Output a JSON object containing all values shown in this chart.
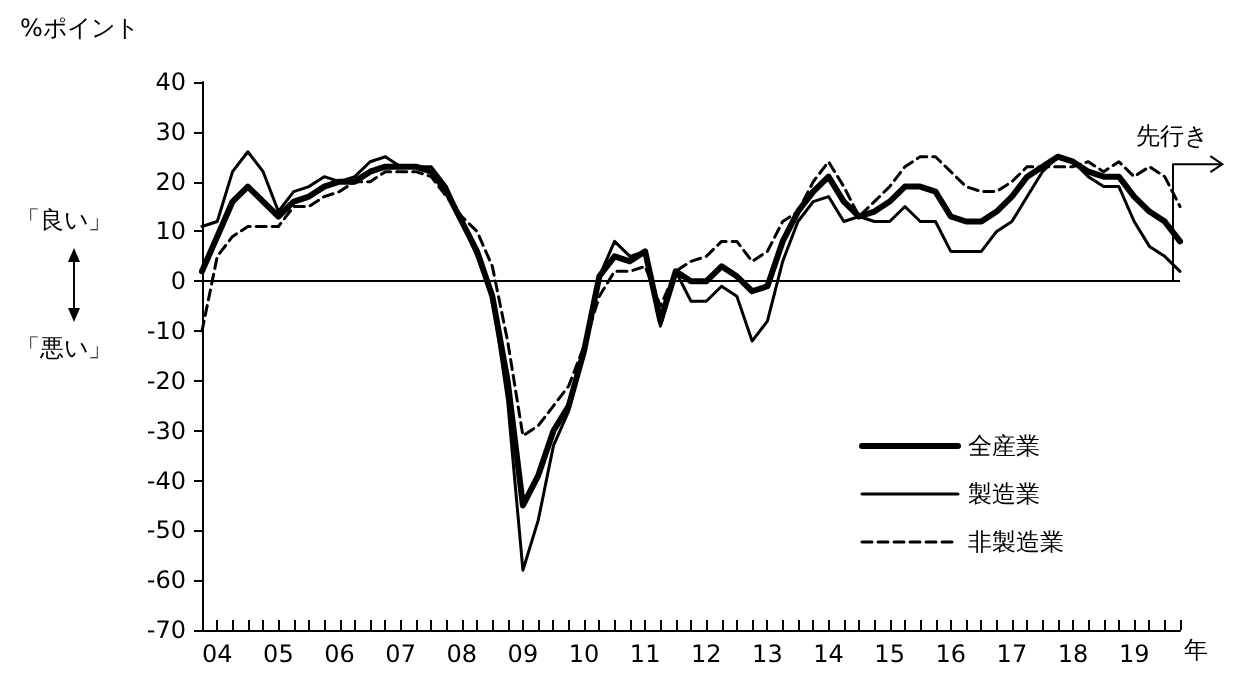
{
  "chart_data": {
    "type": "line",
    "ylabel": "%ポイント",
    "xlabel": "年",
    "annotations": [
      "「良い」",
      "「悪い」"
    ],
    "x": [
      2003.75,
      2004,
      2004.25,
      2004.5,
      2004.75,
      2005,
      2005.25,
      2005.5,
      2005.75,
      2006,
      2006.25,
      2006.5,
      2006.75,
      2007,
      2007.25,
      2007.5,
      2007.75,
      2008,
      2008.25,
      2008.5,
      2008.75,
      2009,
      2009.25,
      2009.5,
      2009.75,
      2010,
      2010.25,
      2010.5,
      2010.75,
      2011,
      2011.25,
      2011.5,
      2011.75,
      2012,
      2012.25,
      2012.5,
      2012.75,
      2013,
      2013.25,
      2013.5,
      2013.75,
      2014,
      2014.25,
      2014.5,
      2014.75,
      2015,
      2015.25,
      2015.5,
      2015.75,
      2016,
      2016.25,
      2016.5,
      2016.75,
      2017,
      2017.25,
      2017.5,
      2017.75,
      2018,
      2018.25,
      2018.5,
      2018.75,
      2019,
      2019.25,
      2019.5,
      2019.75
    ],
    "series": [
      {
        "name": "全産業",
        "color": "#000000",
        "line_style": "solid",
        "values": [
          2,
          9,
          16,
          19,
          16,
          13,
          16,
          17,
          19,
          20,
          20,
          22,
          23,
          23,
          23,
          22,
          18,
          12,
          6,
          -3,
          -20,
          -45,
          -39,
          -30,
          -25,
          -14,
          1,
          5,
          4,
          6,
          -8,
          2,
          0,
          0,
          3,
          1,
          -2,
          -1,
          8,
          14,
          18,
          21,
          16,
          13,
          14,
          16,
          19,
          19,
          18,
          13,
          12,
          12,
          14,
          17,
          21,
          23,
          25,
          24,
          22,
          21,
          21,
          17,
          14,
          12,
          8
        ]
      },
      {
        "name": "製造業",
        "color": "#000000",
        "line_style": "solid",
        "values": [
          11,
          12,
          22,
          26,
          22,
          14,
          18,
          19,
          21,
          20,
          21,
          24,
          25,
          23,
          23,
          23,
          19,
          12,
          5,
          -3,
          -24,
          -58,
          -48,
          -33,
          -26,
          -14,
          1,
          8,
          5,
          6,
          -9,
          2,
          -4,
          -4,
          -1,
          -3,
          -12,
          -8,
          4,
          12,
          16,
          17,
          12,
          13,
          12,
          12,
          15,
          12,
          12,
          6,
          6,
          6,
          10,
          12,
          17,
          22,
          25,
          24,
          21,
          19,
          19,
          12,
          7,
          5,
          2
        ]
      },
      {
        "name": "非製造業",
        "color": "#000000",
        "line_style": "dashed",
        "values": [
          -10,
          5,
          9,
          11,
          11,
          11,
          15,
          15,
          17,
          18,
          20,
          20,
          22,
          22,
          22,
          21,
          17,
          13,
          10,
          3,
          -12,
          -31,
          -29,
          -25,
          -21,
          -13,
          -3,
          2,
          2,
          3,
          -5,
          2,
          4,
          5,
          8,
          8,
          4,
          6,
          12,
          14,
          20,
          24,
          19,
          13,
          16,
          19,
          23,
          25,
          25,
          22,
          19,
          18,
          18,
          20,
          23,
          23,
          23,
          23,
          24,
          22,
          24,
          21,
          23,
          21,
          15
        ]
      }
    ],
    "xlim": [
      2003.75,
      2019.75
    ],
    "xticks": [
      {
        "value": 2003.75,
        "label": null
      },
      {
        "value": 2004,
        "label": "04"
      },
      {
        "value": 2004.25,
        "label": null
      },
      {
        "value": 2004.5,
        "label": null
      },
      {
        "value": 2004.75,
        "label": null
      },
      {
        "value": 2005,
        "label": "05"
      },
      {
        "value": 2005.25,
        "label": null
      },
      {
        "value": 2005.5,
        "label": null
      },
      {
        "value": 2005.75,
        "label": null
      },
      {
        "value": 2006,
        "label": "06"
      },
      {
        "value": 2006.25,
        "label": null
      },
      {
        "value": 2006.5,
        "label": null
      },
      {
        "value": 2006.75,
        "label": null
      },
      {
        "value": 2007,
        "label": "07"
      },
      {
        "value": 2007.25,
        "label": null
      },
      {
        "value": 2007.5,
        "label": null
      },
      {
        "value": 2007.75,
        "label": null
      },
      {
        "value": 2008,
        "label": "08"
      },
      {
        "value": 2008.25,
        "label": null
      },
      {
        "value": 2008.5,
        "label": null
      },
      {
        "value": 2008.75,
        "label": null
      },
      {
        "value": 2009,
        "label": "09"
      },
      {
        "value": 2009.25,
        "label": null
      },
      {
        "value": 2009.5,
        "label": null
      },
      {
        "value": 2009.75,
        "label": null
      },
      {
        "value": 2010,
        "label": "10"
      },
      {
        "value": 2010.25,
        "label": null
      },
      {
        "value": 2010.5,
        "label": null
      },
      {
        "value": 2010.75,
        "label": null
      },
      {
        "value": 2011,
        "label": "11"
      },
      {
        "value": 2011.25,
        "label": null
      },
      {
        "value": 2011.5,
        "label": null
      },
      {
        "value": 2011.75,
        "label": null
      },
      {
        "value": 2012,
        "label": "12"
      },
      {
        "value": 2012.25,
        "label": null
      },
      {
        "value": 2012.5,
        "label": null
      },
      {
        "value": 2012.75,
        "label": null
      },
      {
        "value": 2013,
        "label": "13"
      },
      {
        "value": 2013.25,
        "label": null
      },
      {
        "value": 2013.5,
        "label": null
      },
      {
        "value": 2013.75,
        "label": null
      },
      {
        "value": 2014,
        "label": "14"
      },
      {
        "value": 2014.25,
        "label": null
      },
      {
        "value": 2014.5,
        "label": null
      },
      {
        "value": 2014.75,
        "label": null
      },
      {
        "value": 2015,
        "label": "15"
      },
      {
        "value": 2015.25,
        "label": null
      },
      {
        "value": 2015.5,
        "label": null
      },
      {
        "value": 2015.75,
        "label": null
      },
      {
        "value": 2016,
        "label": "16"
      },
      {
        "value": 2016.25,
        "label": null
      },
      {
        "value": 2016.5,
        "label": null
      },
      {
        "value": 2016.75,
        "label": null
      },
      {
        "value": 2017,
        "label": "17"
      },
      {
        "value": 2017.25,
        "label": null
      },
      {
        "value": 2017.5,
        "label": null
      },
      {
        "value": 2017.75,
        "label": null
      },
      {
        "value": 2018,
        "label": "18"
      },
      {
        "value": 2018.25,
        "label": null
      },
      {
        "value": 2018.5,
        "label": null
      },
      {
        "value": 2018.75,
        "label": null
      },
      {
        "value": 2019,
        "label": "19"
      },
      {
        "value": 2019.25,
        "label": null
      },
      {
        "value": 2019.5,
        "label": null
      },
      {
        "value": 2019.75,
        "label": null
      }
    ],
    "ylim": [
      -70,
      40
    ],
    "yticks": [
      -70,
      -60,
      -50,
      -40,
      -30,
      -20,
      -10,
      0,
      10,
      20,
      30,
      40
    ],
    "ref_lines": [
      {
        "axis": "y",
        "value": 0,
        "label": null
      },
      {
        "axis": "x",
        "value": 2019.625,
        "label": "先行き"
      }
    ],
    "grid": false,
    "legend": "bottom right",
    "marker": "none"
  }
}
